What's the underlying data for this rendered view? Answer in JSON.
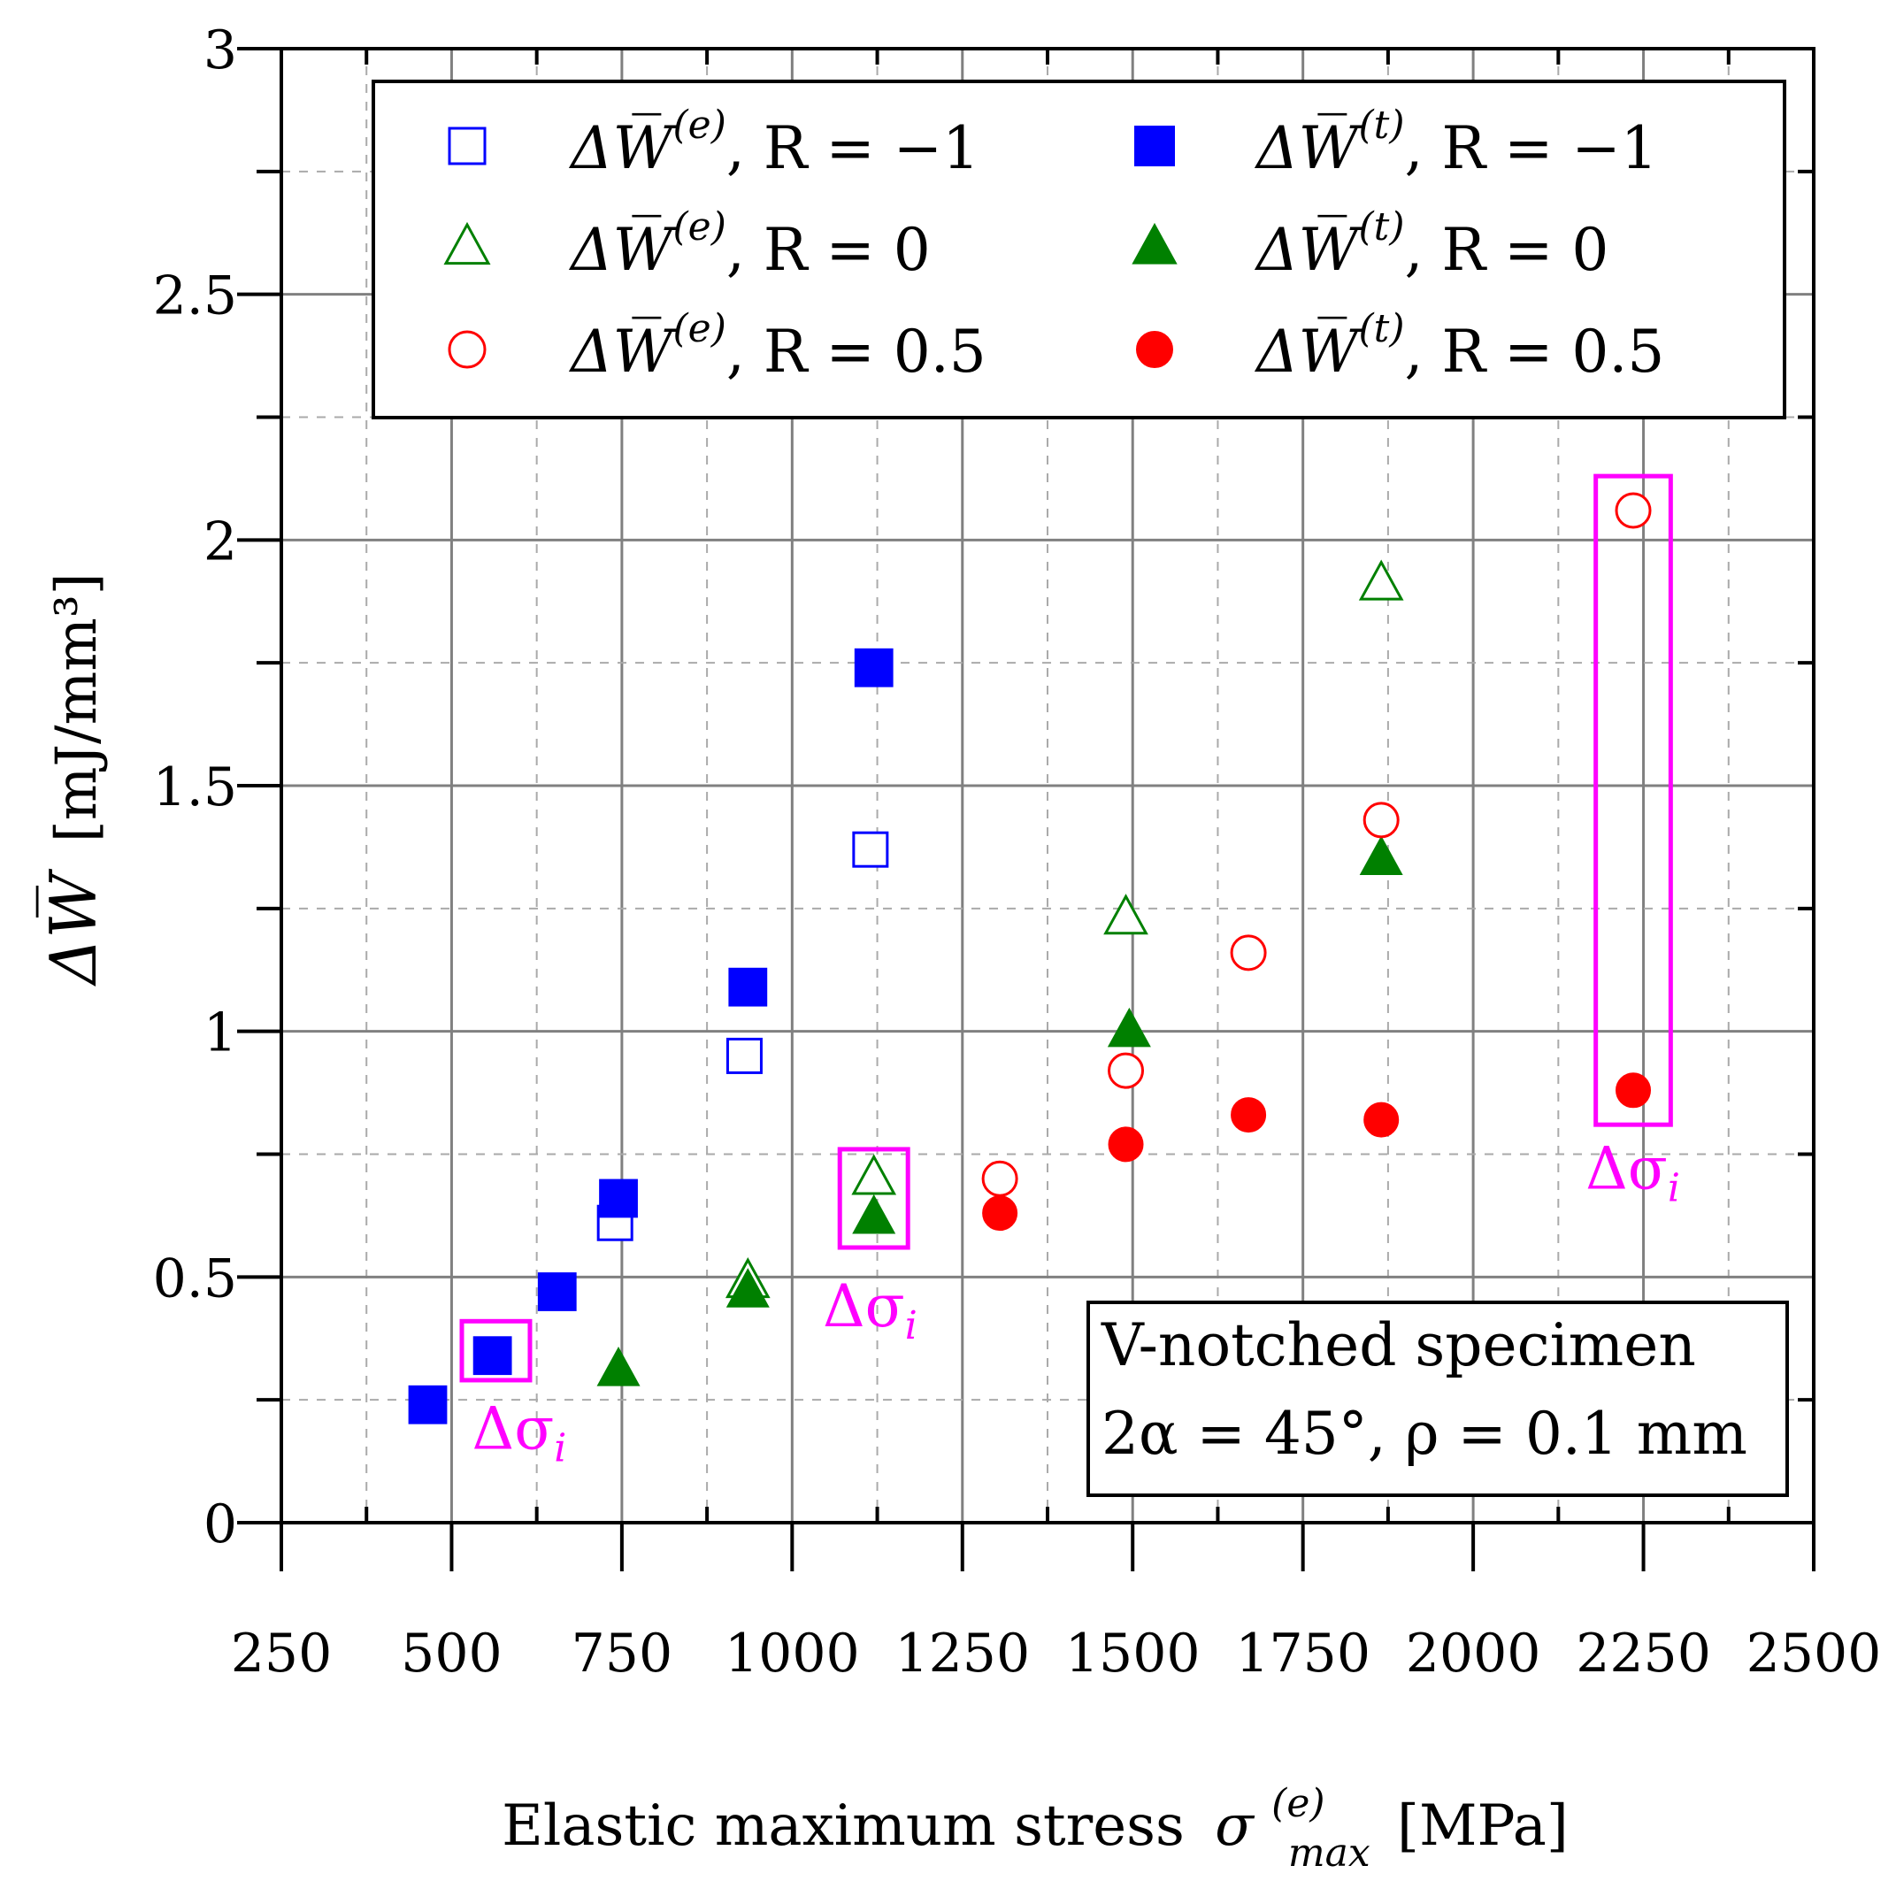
{
  "chart_data": {
    "type": "scatter",
    "title": "",
    "xlabel": "Elastic maximum stress",
    "xlabel_symbol": "σ",
    "xlabel_superscript": "(e)",
    "xlabel_subscript": "max",
    "xlabel_unit": "[MPa]",
    "ylabel": "ΔW̅",
    "ylabel_unit": "[mJ/mm³]",
    "xlim": [
      250,
      2500
    ],
    "ylim": [
      0,
      3
    ],
    "x_ticks": [
      "250",
      "500",
      "750",
      "1000",
      "1250",
      "1500",
      "1750",
      "2000",
      "2250",
      "2500"
    ],
    "x_tick_values": [
      250,
      500,
      750,
      1000,
      1250,
      1500,
      1750,
      2000,
      2250,
      2500
    ],
    "y_ticks": [
      "0",
      "0.5",
      "1",
      "1.5",
      "2",
      "2.5",
      "3"
    ],
    "y_tick_values": [
      0,
      0.5,
      1,
      1.5,
      2,
      2.5,
      3
    ],
    "grid": true,
    "legend_position": "top",
    "series": [
      {
        "key": "we_rm1",
        "name": "ΔW̅",
        "sup": "(e)",
        "suffix": ", R = −1",
        "marker": "square",
        "filled": false,
        "color": "#0000ff",
        "points": [
          [
            740,
            0.61
          ],
          [
            930,
            0.95
          ],
          [
            1115,
            1.37
          ]
        ]
      },
      {
        "key": "wt_rm1",
        "name": "ΔW̅",
        "sup": "(t)",
        "suffix": ", R = −1",
        "marker": "square",
        "filled": true,
        "color": "#0000ff",
        "points": [
          [
            465,
            0.24
          ],
          [
            560,
            0.34
          ],
          [
            655,
            0.47
          ],
          [
            745,
            0.66
          ],
          [
            935,
            1.09
          ],
          [
            1120,
            1.74
          ]
        ]
      },
      {
        "key": "we_r0",
        "name": "ΔW̅",
        "sup": "(e)",
        "suffix": ", R = 0",
        "marker": "triangle",
        "filled": false,
        "color": "#008000",
        "points": [
          [
            935,
            0.49
          ],
          [
            1120,
            0.7
          ],
          [
            1490,
            1.23
          ],
          [
            1865,
            1.91
          ]
        ]
      },
      {
        "key": "wt_r0",
        "name": "ΔW̅",
        "sup": "(t)",
        "suffix": ", R = 0",
        "marker": "triangle",
        "filled": true,
        "color": "#008000",
        "points": [
          [
            745,
            0.31
          ],
          [
            935,
            0.47
          ],
          [
            1120,
            0.62
          ],
          [
            1495,
            1.0
          ],
          [
            1865,
            1.35
          ]
        ]
      },
      {
        "key": "we_r05",
        "name": "ΔW̅",
        "sup": "(e)",
        "suffix": ", R = 0.5",
        "marker": "circle",
        "filled": false,
        "color": "#ff0000",
        "points": [
          [
            1305,
            0.7
          ],
          [
            1490,
            0.92
          ],
          [
            1670,
            1.16
          ],
          [
            1865,
            1.43
          ],
          [
            2235,
            2.06
          ]
        ]
      },
      {
        "key": "wt_r05",
        "name": "ΔW̅",
        "sup": "(t)",
        "suffix": ", R = 0.5",
        "marker": "circle",
        "filled": true,
        "color": "#ff0000",
        "points": [
          [
            1305,
            0.63
          ],
          [
            1490,
            0.77
          ],
          [
            1670,
            0.83
          ],
          [
            1865,
            0.82
          ],
          [
            2235,
            0.88
          ]
        ]
      }
    ],
    "annotations": [
      {
        "label": "Δσ",
        "sub": "i",
        "box_x": [
          515,
          615
        ],
        "box_y": [
          0.29,
          0.41
        ],
        "text_x": 530,
        "text_y": 0.15
      },
      {
        "label": "Δσ",
        "sub": "i",
        "box_x": [
          1070,
          1170
        ],
        "box_y": [
          0.56,
          0.76
        ],
        "text_x": 1045,
        "text_y": 0.4
      },
      {
        "label": "Δσ",
        "sub": "i",
        "box_x": [
          2180,
          2290
        ],
        "box_y": [
          0.81,
          2.13
        ],
        "text_x": 2165,
        "text_y": 0.68
      }
    ],
    "info_box": {
      "line1": "V-notched specimen",
      "line2": "2α = 45°, ρ = 0.1 mm",
      "position": "bottom-right"
    },
    "colors": {
      "annotation": "#ff00ff",
      "grid": "#808080",
      "axes": "#000000"
    }
  }
}
